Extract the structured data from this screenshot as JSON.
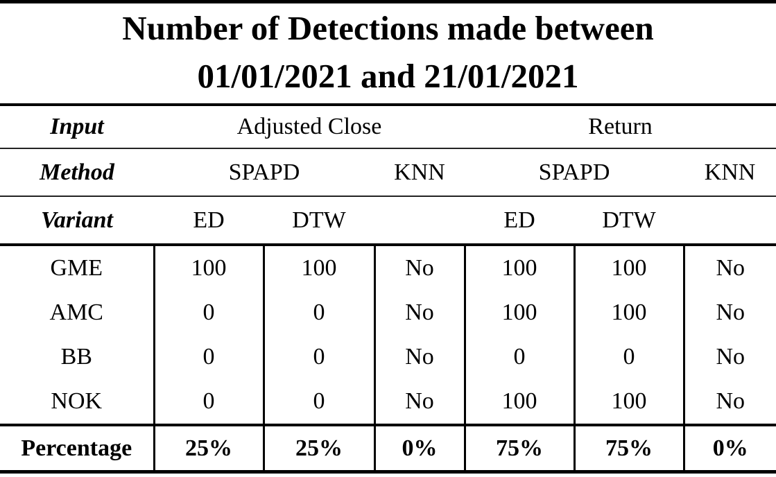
{
  "title": {
    "line1": "Number of Detections made between",
    "line2": "01/01/2021 and 21/01/2021"
  },
  "header": {
    "input": {
      "label": "Input",
      "adjusted_close": "Adjusted Close",
      "return": "Return"
    },
    "method": {
      "label": "Method",
      "spapd_1": "SPAPD",
      "knn_1": "KNN",
      "spapd_2": "SPAPD",
      "knn_2": "KNN"
    },
    "variant": {
      "label": "Variant",
      "ed_1": "ED",
      "dtw_1": "DTW",
      "ed_2": "ED",
      "dtw_2": "DTW"
    }
  },
  "rows": [
    {
      "ticker": "GME",
      "values": [
        "100",
        "100",
        "No",
        "100",
        "100",
        "No"
      ]
    },
    {
      "ticker": "AMC",
      "values": [
        "0",
        "0",
        "No",
        "100",
        "100",
        "No"
      ]
    },
    {
      "ticker": "BB",
      "values": [
        "0",
        "0",
        "No",
        "0",
        "0",
        "No"
      ]
    },
    {
      "ticker": "NOK",
      "values": [
        "0",
        "0",
        "No",
        "100",
        "100",
        "No"
      ]
    }
  ],
  "percentage": {
    "label": "Percentage",
    "values": [
      "25%",
      "25%",
      "0%",
      "75%",
      "75%",
      "0%"
    ]
  }
}
